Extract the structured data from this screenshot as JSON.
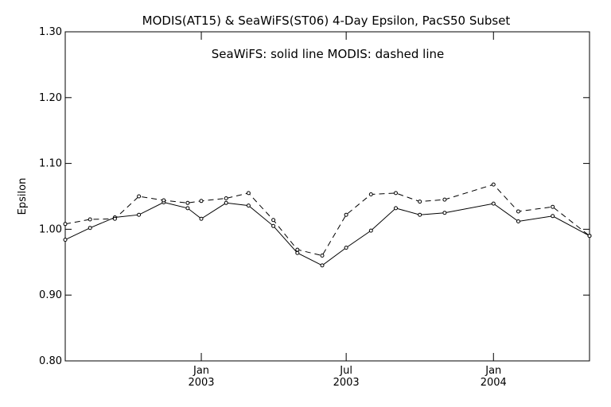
{
  "chart_data": {
    "type": "line",
    "title": "MODIS(AT15) & SeaWiFS(ST06) 4-Day Epsilon, PacS50 Subset",
    "annotation": "SeaWiFS: solid line    MODIS: dashed line",
    "xlabel": "",
    "ylabel": "Epsilon",
    "ylim": [
      0.8,
      1.3
    ],
    "yticks": [
      0.8,
      0.9,
      1.0,
      1.1,
      1.2,
      1.3
    ],
    "ytick_labels": [
      "0.80",
      "0.90",
      "1.00",
      "1.10",
      "1.20",
      "1.30"
    ],
    "xlim": [
      "2002-07-15",
      "2004-04-30"
    ],
    "xticks": [
      {
        "date": "2003-01-01",
        "month": "Jan",
        "year": "2003"
      },
      {
        "date": "2003-07-01",
        "month": "Jul",
        "year": "2003"
      },
      {
        "date": "2004-01-01",
        "month": "Jan",
        "year": "2004"
      }
    ],
    "grid": false,
    "series": [
      {
        "style": "solid",
        "points": [
          {
            "x": "2002-07-15",
            "y": 0.984
          },
          {
            "x": "2002-08-15",
            "y": 1.002
          },
          {
            "x": "2002-09-15",
            "y": 1.018
          },
          {
            "x": "2002-10-15",
            "y": 1.022
          },
          {
            "x": "2002-11-15",
            "y": 1.041
          },
          {
            "x": "2002-12-15",
            "y": 1.032
          },
          {
            "x": "2003-01-01",
            "y": 1.016
          },
          {
            "x": "2003-02-01",
            "y": 1.04
          },
          {
            "x": "2003-03-01",
            "y": 1.036
          },
          {
            "x": "2003-04-01",
            "y": 1.005
          },
          {
            "x": "2003-05-01",
            "y": 0.964
          },
          {
            "x": "2003-06-01",
            "y": 0.945
          },
          {
            "x": "2003-07-01",
            "y": 0.972
          },
          {
            "x": "2003-08-01",
            "y": 0.998
          },
          {
            "x": "2003-09-01",
            "y": 1.032
          },
          {
            "x": "2003-10-01",
            "y": 1.022
          },
          {
            "x": "2003-11-01",
            "y": 1.025
          },
          {
            "x": "2004-01-01",
            "y": 1.039
          },
          {
            "x": "2004-02-01",
            "y": 1.012
          },
          {
            "x": "2004-03-15",
            "y": 1.02
          },
          {
            "x": "2004-04-30",
            "y": 0.99
          }
        ]
      },
      {
        "style": "dashed",
        "points": [
          {
            "x": "2002-07-15",
            "y": 1.008
          },
          {
            "x": "2002-08-15",
            "y": 1.015
          },
          {
            "x": "2002-09-15",
            "y": 1.016
          },
          {
            "x": "2002-10-15",
            "y": 1.05
          },
          {
            "x": "2002-11-15",
            "y": 1.044
          },
          {
            "x": "2002-12-15",
            "y": 1.04
          },
          {
            "x": "2003-01-01",
            "y": 1.043
          },
          {
            "x": "2003-02-01",
            "y": 1.047
          },
          {
            "x": "2003-03-01",
            "y": 1.055
          },
          {
            "x": "2003-04-01",
            "y": 1.014
          },
          {
            "x": "2003-05-01",
            "y": 0.969
          },
          {
            "x": "2003-06-01",
            "y": 0.96
          },
          {
            "x": "2003-07-01",
            "y": 1.022
          },
          {
            "x": "2003-08-01",
            "y": 1.053
          },
          {
            "x": "2003-09-01",
            "y": 1.055
          },
          {
            "x": "2003-10-01",
            "y": 1.042
          },
          {
            "x": "2003-11-01",
            "y": 1.045
          },
          {
            "x": "2004-01-01",
            "y": 1.068
          },
          {
            "x": "2004-02-01",
            "y": 1.027
          },
          {
            "x": "2004-03-15",
            "y": 1.034
          },
          {
            "x": "2004-04-30",
            "y": 0.99
          }
        ]
      }
    ],
    "colors": {
      "line": "#000000",
      "axes": "#000000",
      "background": "#ffffff"
    }
  }
}
